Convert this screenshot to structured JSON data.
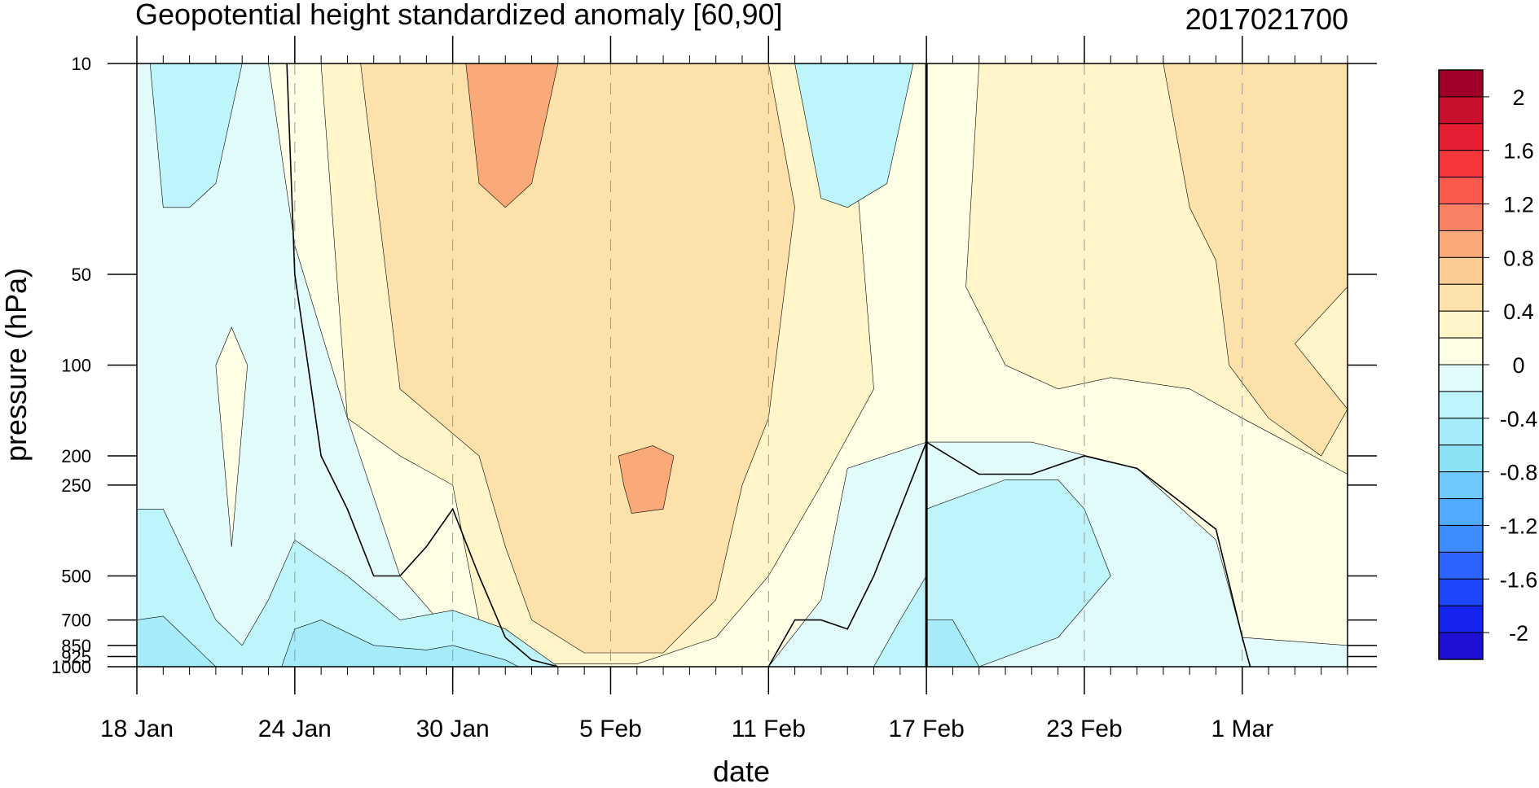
{
  "chart_data": {
    "type": "heatmap",
    "title": "Geopotential height standardized anomaly [60,90]",
    "title_right": "2017021700",
    "xlabel": "date",
    "ylabel": "pressure (hPa)",
    "x_range": [
      "2017-01-18",
      "2017-03-05"
    ],
    "x_ticks": [
      {
        "date": "2017-01-18",
        "label": "18 Jan"
      },
      {
        "date": "2017-01-24",
        "label": "24 Jan"
      },
      {
        "date": "2017-01-30",
        "label": "30 Jan"
      },
      {
        "date": "2017-02-05",
        "label": "5 Feb"
      },
      {
        "date": "2017-02-11",
        "label": "11 Feb"
      },
      {
        "date": "2017-02-17",
        "label": "17 Feb"
      },
      {
        "date": "2017-02-23",
        "label": "23 Feb"
      },
      {
        "date": "2017-03-01",
        "label": "1 Mar"
      }
    ],
    "y_scale": "log",
    "y_range": [
      1000,
      10
    ],
    "y_ticks": [
      10,
      50,
      100,
      200,
      250,
      500,
      700,
      850,
      925,
      1000
    ],
    "current_date_line": "2017-02-17",
    "grid": "dashed vertical lines at x ticks",
    "colorbar": {
      "levels": [
        -2.2,
        -2,
        -1.8,
        -1.6,
        -1.4,
        -1.2,
        -1,
        -0.8,
        -0.6,
        -0.4,
        -0.2,
        0,
        0.2,
        0.4,
        0.6,
        0.8,
        1,
        1.2,
        1.4,
        1.6,
        1.8,
        2,
        2.2
      ],
      "colors": [
        "#1E0FD2",
        "#1423F0",
        "#1E46FA",
        "#2D64FF",
        "#3C8CFF",
        "#50AAFF",
        "#6EC8FA",
        "#8CE1F5",
        "#A5EBFA",
        "#BEF5FA",
        "#E1FAFA",
        "#FFFFE6",
        "#FFF5C8",
        "#FDE1AA",
        "#FBCD94",
        "#FAAA78",
        "#FA8264",
        "#FA5A4B",
        "#F5373C",
        "#E61E32",
        "#C80F2D",
        "#A00028"
      ],
      "labels": [
        "2",
        "1.6",
        "1.2",
        "0.8",
        "0.4",
        "0",
        "-0.4",
        "-0.8",
        "-1.2",
        "-1.6",
        "-2"
      ]
    },
    "regions": [
      {
        "level": 0.1,
        "points": [
          [
            "2017-01-23",
            10
          ],
          [
            "2017-02-17",
            10
          ],
          [
            "2017-02-17",
            180
          ],
          [
            "2017-02-14",
            220
          ],
          [
            "2017-02-13",
            600
          ],
          [
            "2017-02-11",
            1000
          ],
          [
            "2017-01-31",
            1000
          ],
          [
            "2017-01-28",
            500
          ],
          [
            "2017-01-26",
            150
          ],
          [
            "2017-01-24",
            40
          ]
        ]
      },
      {
        "level": 0.1,
        "points": [
          [
            "2017-01-21",
            100
          ],
          [
            "2017-01-21.6",
            75
          ],
          [
            "2017-01-22.2",
            100
          ],
          [
            "2017-01-21.6",
            400
          ]
        ]
      },
      {
        "level": 0.1,
        "points": [
          [
            "2017-02-17",
            10
          ],
          [
            "2017-03-05",
            10
          ],
          [
            "2017-03-05",
            850
          ],
          [
            "2017-03-01",
            800
          ],
          [
            "2017-02-28",
            380
          ],
          [
            "2017-02-25",
            220
          ],
          [
            "2017-02-21",
            180
          ],
          [
            "2017-02-17",
            180
          ]
        ]
      },
      {
        "level": 0.3,
        "points": [
          [
            "2017-01-25",
            10
          ],
          [
            "2017-02-14",
            10
          ],
          [
            "2017-02-15",
            120
          ],
          [
            "2017-02-13",
            250
          ],
          [
            "2017-02-11",
            500
          ],
          [
            "2017-02-09",
            800
          ],
          [
            "2017-02-06",
            980
          ],
          [
            "2017-02-02",
            980
          ],
          [
            "2017-01-31",
            700
          ],
          [
            "2017-01-30",
            250
          ],
          [
            "2017-01-28",
            200
          ],
          [
            "2017-01-26",
            150
          ]
        ]
      },
      {
        "level": 0.3,
        "points": [
          [
            "2017-02-19",
            10
          ],
          [
            "2017-03-05",
            10
          ],
          [
            "2017-03-05",
            230
          ],
          [
            "2017-03-01",
            150
          ],
          [
            "2017-02-27",
            120
          ],
          [
            "2017-02-24",
            110
          ],
          [
            "2017-02-22",
            120
          ],
          [
            "2017-02-20",
            100
          ],
          [
            "2017-02-18.5",
            55
          ]
        ]
      },
      {
        "level": 0.5,
        "points": [
          [
            "2017-01-26.5",
            10
          ],
          [
            "2017-02-11",
            10
          ],
          [
            "2017-02-12",
            30
          ],
          [
            "2017-02-11",
            150
          ],
          [
            "2017-02-10",
            250
          ],
          [
            "2017-02-09",
            600
          ],
          [
            "2017-02-07",
            900
          ],
          [
            "2017-02-04",
            900
          ],
          [
            "2017-02-02",
            700
          ],
          [
            "2017-02-01",
            400
          ],
          [
            "2017-01-31",
            200
          ],
          [
            "2017-01-28",
            120
          ]
        ]
      },
      {
        "level": 0.5,
        "points": [
          [
            "2017-02-24",
            10
          ],
          [
            "2017-03-05",
            10
          ],
          [
            "2017-03-05",
            55
          ],
          [
            "2017-03-03",
            85
          ],
          [
            "2017-03-05",
            140
          ],
          [
            "2017-03-04",
            200
          ],
          [
            "2017-03-02",
            150
          ],
          [
            "2017-02-28.5",
            100
          ],
          [
            "2017-02-28",
            45
          ],
          [
            "2017-02-27",
            30
          ],
          [
            "2017-02-26",
            10
          ]
        ]
      },
      {
        "level": 0.9,
        "points": [
          [
            "2017-01-30.5",
            10
          ],
          [
            "2017-02-03",
            10
          ],
          [
            "2017-02-02",
            25
          ],
          [
            "2017-02-01",
            30
          ],
          [
            "2017-01-31",
            25
          ]
        ]
      },
      {
        "level": 0.9,
        "points": [
          [
            "2017-02-05.3",
            200
          ],
          [
            "2017-02-06.6",
            185
          ],
          [
            "2017-02-07.4",
            200
          ],
          [
            "2017-02-07",
            300
          ],
          [
            "2017-02-05.8",
            310
          ],
          [
            "2017-02-05.5",
            250
          ]
        ]
      },
      {
        "level": -0.3,
        "points": [
          [
            "2017-01-18.5",
            10
          ],
          [
            "2017-01-22",
            10
          ],
          [
            "2017-01-21",
            25
          ],
          [
            "2017-01-20",
            30
          ],
          [
            "2017-01-19",
            30
          ]
        ]
      },
      {
        "level": -0.3,
        "points": [
          [
            "2017-02-12",
            10
          ],
          [
            "2017-02-16.5",
            10
          ],
          [
            "2017-02-15.5",
            25
          ],
          [
            "2017-02-14",
            30
          ],
          [
            "2017-02-13",
            28
          ]
        ]
      },
      {
        "level": -0.3,
        "points": [
          [
            "2017-01-18",
            300
          ],
          [
            "2017-01-19",
            300
          ],
          [
            "2017-01-21",
            700
          ],
          [
            "2017-01-22",
            850
          ],
          [
            "2017-01-23",
            600
          ],
          [
            "2017-01-24",
            380
          ],
          [
            "2017-01-26",
            500
          ],
          [
            "2017-01-28",
            700
          ],
          [
            "2017-01-30",
            650
          ],
          [
            "2017-02-01",
            750
          ],
          [
            "2017-02-03",
            1000
          ],
          [
            "2017-01-18",
            1000
          ]
        ]
      },
      {
        "level": -0.3,
        "points": [
          [
            "2017-02-17",
            300
          ],
          [
            "2017-02-20",
            240
          ],
          [
            "2017-02-22",
            240
          ],
          [
            "2017-02-23",
            300
          ],
          [
            "2017-02-24",
            500
          ],
          [
            "2017-02-22",
            800
          ],
          [
            "2017-02-19",
            1000
          ],
          [
            "2017-02-17",
            1000
          ]
        ]
      },
      {
        "level": -0.3,
        "points": [
          [
            "2017-02-15",
            1000
          ],
          [
            "2017-02-16",
            700
          ],
          [
            "2017-02-17",
            500
          ],
          [
            "2017-02-17",
            1000
          ]
        ]
      },
      {
        "level": -0.5,
        "points": [
          [
            "2017-01-18",
            700
          ],
          [
            "2017-01-19",
            680
          ],
          [
            "2017-01-21",
            1000
          ],
          [
            "2017-01-18",
            1000
          ]
        ]
      },
      {
        "level": -0.5,
        "points": [
          [
            "2017-01-24",
            750
          ],
          [
            "2017-01-25",
            700
          ],
          [
            "2017-01-27",
            850
          ],
          [
            "2017-01-29",
            880
          ],
          [
            "2017-01-30",
            850
          ],
          [
            "2017-02-01",
            950
          ],
          [
            "2017-02-01.5",
            1000
          ],
          [
            "2017-01-23.5",
            1000
          ]
        ]
      },
      {
        "level": -0.5,
        "points": [
          [
            "2017-02-17",
            700
          ],
          [
            "2017-02-18",
            700
          ],
          [
            "2017-02-19",
            1000
          ],
          [
            "2017-02-17",
            1000
          ]
        ]
      }
    ],
    "contour_lines": [
      {
        "level": 0,
        "points": [
          [
            "2017-01-23.7",
            10
          ],
          [
            "2017-01-24",
            50
          ],
          [
            "2017-01-24.5",
            100
          ],
          [
            "2017-01-25",
            200
          ],
          [
            "2017-01-26",
            300
          ],
          [
            "2017-01-27",
            500
          ],
          [
            "2017-01-28",
            500
          ],
          [
            "2017-01-29",
            400
          ],
          [
            "2017-01-30",
            300
          ],
          [
            "2017-01-31",
            500
          ],
          [
            "2017-02-01",
            800
          ],
          [
            "2017-02-02",
            950
          ],
          [
            "2017-02-03",
            1000
          ]
        ]
      },
      {
        "level": 0,
        "points": [
          [
            "2017-02-11",
            1000
          ],
          [
            "2017-02-12",
            700
          ],
          [
            "2017-02-13",
            700
          ],
          [
            "2017-02-14",
            750
          ],
          [
            "2017-02-15",
            500
          ],
          [
            "2017-02-16",
            300
          ],
          [
            "2017-02-17",
            180
          ],
          [
            "2017-02-19",
            230
          ],
          [
            "2017-02-21",
            230
          ],
          [
            "2017-02-23",
            200
          ],
          [
            "2017-02-25",
            220
          ],
          [
            "2017-02-27",
            300
          ],
          [
            "2017-02-28",
            350
          ],
          [
            "2017-03-01",
            800
          ],
          [
            "2017-03-01.3",
            1000
          ]
        ]
      }
    ]
  }
}
